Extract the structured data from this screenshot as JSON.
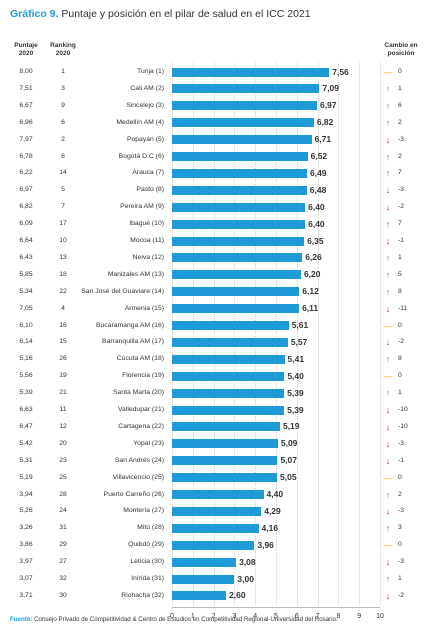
{
  "title": {
    "label": "Gráfico 9.",
    "text": "Puntaje y posición en el pilar de salud en el ICC 2021"
  },
  "headers": {
    "puntaje": "Puntaje\n2020",
    "ranking": "Ranking\n2020",
    "cambio": "Cambio en\nposición"
  },
  "footer": {
    "label": "Fuente:",
    "text": "Consejo Privado de Competitividad & Centro de Estudios en Competitividad Regional-Universidad del Rosario."
  },
  "colors": {
    "bar": "#1e9bd7",
    "up": "#3aaa35",
    "down": "#c8202f",
    "equal": "#e8b400"
  },
  "chart_data": {
    "type": "bar",
    "orientation": "horizontal",
    "xlim": [
      0,
      10
    ],
    "xticks": [
      "0",
      "1",
      "2",
      "3",
      "4",
      "5",
      "6",
      "7",
      "8",
      "9",
      "10"
    ],
    "grid": true,
    "rows": [
      {
        "puntaje": "8,00",
        "ranking": "1",
        "city": "Tunja (1)",
        "value": 7.56,
        "label": "7,56",
        "dir": "eq",
        "change": "0"
      },
      {
        "puntaje": "7,51",
        "ranking": "3",
        "city": "Cali AM (2)",
        "value": 7.09,
        "label": "7,09",
        "dir": "up",
        "change": "1"
      },
      {
        "puntaje": "6,67",
        "ranking": "9",
        "city": "Sincelejo (3)",
        "value": 6.97,
        "label": "6,97",
        "dir": "up",
        "change": "6"
      },
      {
        "puntaje": "6,96",
        "ranking": "6",
        "city": "Medellín AM (4)",
        "value": 6.82,
        "label": "6,82",
        "dir": "up",
        "change": "2"
      },
      {
        "puntaje": "7,97",
        "ranking": "2",
        "city": "Popayán (5)",
        "value": 6.71,
        "label": "6,71",
        "dir": "down",
        "change": "-3"
      },
      {
        "puntaje": "6,78",
        "ranking": "8",
        "city": "Bogotá D.C (6)",
        "value": 6.52,
        "label": "6,52",
        "dir": "up",
        "change": "2"
      },
      {
        "puntaje": "6,22",
        "ranking": "14",
        "city": "Arauca (7)",
        "value": 6.49,
        "label": "6,49",
        "dir": "up",
        "change": "7"
      },
      {
        "puntaje": "6,97",
        "ranking": "5",
        "city": "Pasto (8)",
        "value": 6.48,
        "label": "6,48",
        "dir": "down",
        "change": "-3"
      },
      {
        "puntaje": "6,82",
        "ranking": "7",
        "city": "Pereira AM (9)",
        "value": 6.4,
        "label": "6,40",
        "dir": "down",
        "change": "-2"
      },
      {
        "puntaje": "6,09",
        "ranking": "17",
        "city": "Ibagué (10)",
        "value": 6.4,
        "label": "6,40",
        "dir": "up",
        "change": "7"
      },
      {
        "puntaje": "6,64",
        "ranking": "10",
        "city": "Mocoa (11)",
        "value": 6.35,
        "label": "6,35",
        "dir": "down",
        "change": "-1"
      },
      {
        "puntaje": "6,43",
        "ranking": "13",
        "city": "Neiva (12)",
        "value": 6.26,
        "label": "6,26",
        "dir": "up",
        "change": "1"
      },
      {
        "puntaje": "5,85",
        "ranking": "18",
        "city": "Manizales AM (13)",
        "value": 6.2,
        "label": "6,20",
        "dir": "up",
        "change": "5"
      },
      {
        "puntaje": "5,34",
        "ranking": "22",
        "city": "San José del Guaviare (14)",
        "value": 6.12,
        "label": "6,12",
        "dir": "up",
        "change": "8"
      },
      {
        "puntaje": "7,05",
        "ranking": "4",
        "city": "Armenia (15)",
        "value": 6.11,
        "label": "6,11",
        "dir": "down",
        "change": "-11"
      },
      {
        "puntaje": "6,10",
        "ranking": "16",
        "city": "Bucaramanga AM (16)",
        "value": 5.61,
        "label": "5,61",
        "dir": "eq",
        "change": "0"
      },
      {
        "puntaje": "6,14",
        "ranking": "15",
        "city": "Barranquilla AM (17)",
        "value": 5.57,
        "label": "5,57",
        "dir": "down",
        "change": "-2"
      },
      {
        "puntaje": "5,16",
        "ranking": "26",
        "city": "Cúcuta AM (18)",
        "value": 5.41,
        "label": "5,41",
        "dir": "up",
        "change": "8"
      },
      {
        "puntaje": "5,56",
        "ranking": "19",
        "city": "Florencia (19)",
        "value": 5.4,
        "label": "5,40",
        "dir": "eq",
        "change": "0"
      },
      {
        "puntaje": "5,39",
        "ranking": "21",
        "city": "Santa Marta (20)",
        "value": 5.39,
        "label": "5,39",
        "dir": "up",
        "change": "1"
      },
      {
        "puntaje": "6,63",
        "ranking": "11",
        "city": "Valledupar (21)",
        "value": 5.39,
        "label": "5,39",
        "dir": "down",
        "change": "-10"
      },
      {
        "puntaje": "6,47",
        "ranking": "12",
        "city": "Cartagena (22)",
        "value": 5.19,
        "label": "5,19",
        "dir": "down",
        "change": "-10"
      },
      {
        "puntaje": "5,42",
        "ranking": "20",
        "city": "Yopal (23)",
        "value": 5.09,
        "label": "5,09",
        "dir": "down",
        "change": "-3"
      },
      {
        "puntaje": "5,31",
        "ranking": "23",
        "city": "San Andrés (24)",
        "value": 5.07,
        "label": "5,07",
        "dir": "down",
        "change": "-1"
      },
      {
        "puntaje": "5,19",
        "ranking": "25",
        "city": "Villavicencio (25)",
        "value": 5.05,
        "label": "5,05",
        "dir": "eq",
        "change": "0"
      },
      {
        "puntaje": "3,94",
        "ranking": "28",
        "city": "Puerto Carreño (26)",
        "value": 4.4,
        "label": "4,40",
        "dir": "up",
        "change": "2"
      },
      {
        "puntaje": "5,26",
        "ranking": "24",
        "city": "Montería (27)",
        "value": 4.29,
        "label": "4,29",
        "dir": "down",
        "change": "-3"
      },
      {
        "puntaje": "3,26",
        "ranking": "31",
        "city": "Mitú (28)",
        "value": 4.16,
        "label": "4,16",
        "dir": "up",
        "change": "3"
      },
      {
        "puntaje": "3,86",
        "ranking": "29",
        "city": "Quibdó (29)",
        "value": 3.96,
        "label": "3,96",
        "dir": "eq",
        "change": "0"
      },
      {
        "puntaje": "3,97",
        "ranking": "27",
        "city": "Leticia (30)",
        "value": 3.08,
        "label": "3,08",
        "dir": "down",
        "change": "-3"
      },
      {
        "puntaje": "3,07",
        "ranking": "32",
        "city": "Inírida (31)",
        "value": 3.0,
        "label": "3,00",
        "dir": "up",
        "change": "1"
      },
      {
        "puntaje": "3,71",
        "ranking": "30",
        "city": "Riohacha (32)",
        "value": 2.6,
        "label": "2,60",
        "dir": "down",
        "change": "-2"
      }
    ]
  }
}
